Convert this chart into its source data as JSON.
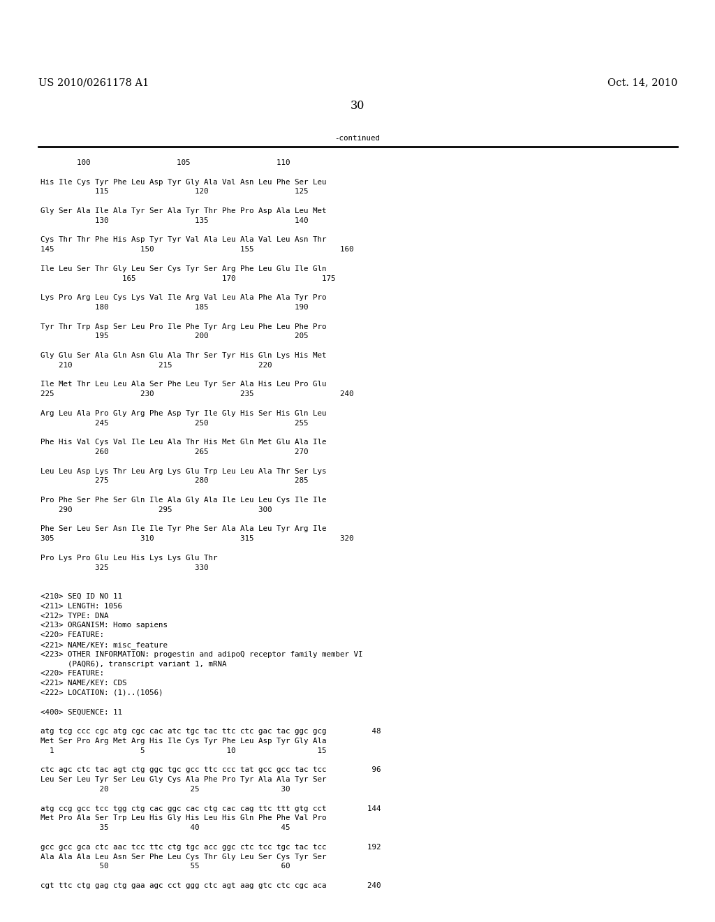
{
  "background_color": "#ffffff",
  "header_left": "US 2010/0261178 A1",
  "header_right": "Oct. 14, 2010",
  "page_number": "30",
  "continued_label": "-continued",
  "font_size_header": 10.5,
  "font_size_mono": 7.8,
  "content_lines": [
    "        100                   105                   110",
    "",
    "His Ile Cys Tyr Phe Leu Asp Tyr Gly Ala Val Asn Leu Phe Ser Leu",
    "            115                   120                   125",
    "",
    "Gly Ser Ala Ile Ala Tyr Ser Ala Tyr Thr Phe Pro Asp Ala Leu Met",
    "            130                   135                   140",
    "",
    "Cys Thr Thr Phe His Asp Tyr Tyr Val Ala Leu Ala Val Leu Asn Thr",
    "145                   150                   155                   160",
    "",
    "Ile Leu Ser Thr Gly Leu Ser Cys Tyr Ser Arg Phe Leu Glu Ile Gln",
    "                  165                   170                   175",
    "",
    "Lys Pro Arg Leu Cys Lys Val Ile Arg Val Leu Ala Phe Ala Tyr Pro",
    "            180                   185                   190",
    "",
    "Tyr Thr Trp Asp Ser Leu Pro Ile Phe Tyr Arg Leu Phe Leu Phe Pro",
    "            195                   200                   205",
    "",
    "Gly Glu Ser Ala Gln Asn Glu Ala Thr Ser Tyr His Gln Lys His Met",
    "    210                   215                   220",
    "",
    "Ile Met Thr Leu Leu Ala Ser Phe Leu Tyr Ser Ala His Leu Pro Glu",
    "225                   230                   235                   240",
    "",
    "Arg Leu Ala Pro Gly Arg Phe Asp Tyr Ile Gly His Ser His Gln Leu",
    "            245                   250                   255",
    "",
    "Phe His Val Cys Val Ile Leu Ala Thr His Met Gln Met Glu Ala Ile",
    "            260                   265                   270",
    "",
    "Leu Leu Asp Lys Thr Leu Arg Lys Glu Trp Leu Leu Ala Thr Ser Lys",
    "            275                   280                   285",
    "",
    "Pro Phe Ser Phe Ser Gln Ile Ala Gly Ala Ile Leu Leu Cys Ile Ile",
    "    290                   295                   300",
    "",
    "Phe Ser Leu Ser Asn Ile Ile Tyr Phe Ser Ala Ala Leu Tyr Arg Ile",
    "305                   310                   315                   320",
    "",
    "Pro Lys Pro Glu Leu His Lys Lys Glu Thr",
    "            325                   330",
    "",
    "",
    "<210> SEQ ID NO 11",
    "<211> LENGTH: 1056",
    "<212> TYPE: DNA",
    "<213> ORGANISM: Homo sapiens",
    "<220> FEATURE:",
    "<221> NAME/KEY: misc_feature",
    "<223> OTHER INFORMATION: progestin and adipoQ receptor family member VI",
    "      (PAQR6), transcript variant 1, mRNA",
    "<220> FEATURE:",
    "<221> NAME/KEY: CDS",
    "<222> LOCATION: (1)..(1056)",
    "",
    "<400> SEQUENCE: 11",
    "",
    "atg tcg ccc cgc atg cgc cac atc tgc tac ttc ctc gac tac ggc gcg          48",
    "Met Ser Pro Arg Met Arg His Ile Cys Tyr Phe Leu Asp Tyr Gly Ala",
    "  1                   5                  10                  15",
    "",
    "ctc agc ctc tac agt ctg ggc tgc gcc ttc ccc tat gcc gcc tac tcc          96",
    "Leu Ser Leu Tyr Ser Leu Gly Cys Ala Phe Pro Tyr Ala Ala Tyr Ser",
    "             20                  25                  30",
    "",
    "atg ccg gcc tcc tgg ctg cac ggc cac ctg cac cag ttc ttt gtg cct         144",
    "Met Pro Ala Ser Trp Leu His Gly His Leu His Gln Phe Phe Val Pro",
    "             35                  40                  45",
    "",
    "gcc gcc gca ctc aac tcc ttc ctg tgc acc ggc ctc tcc tgc tac tcc         192",
    "Ala Ala Ala Leu Asn Ser Phe Leu Cys Thr Gly Leu Ser Cys Tyr Ser",
    "             50                  55                  60",
    "",
    "cgt ttc ctg gag ctg gaa agc cct ggg ctc agt aag gtc ctc cgc aca         240"
  ]
}
